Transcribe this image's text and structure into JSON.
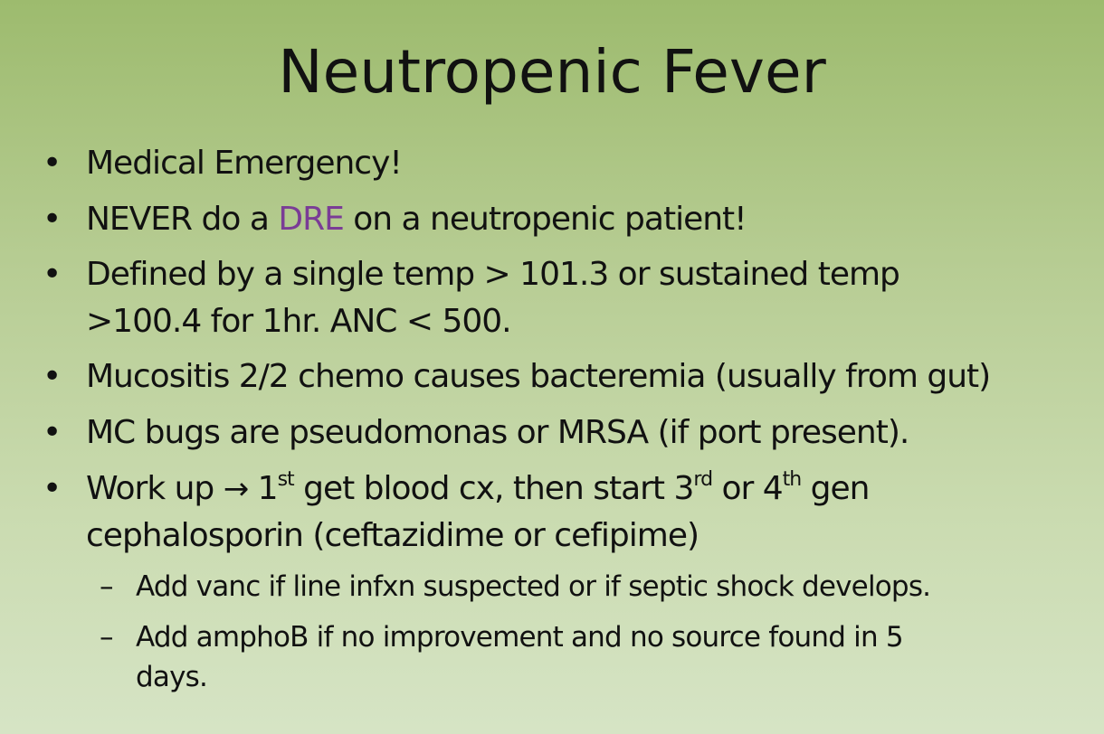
{
  "slide": {
    "title": "Neutropenic Fever",
    "accent_color": "#7a3c96",
    "bullets": [
      {
        "text": "Medical Emergency!"
      },
      {
        "pre": "NEVER do a ",
        "highlight": "DRE",
        "post": " on a neutropenic patient!"
      },
      {
        "line1": "Defined by a single temp > 101.3 or sustained temp",
        "line2": ">100.4 for 1hr. ANC < 500."
      },
      {
        "text": "Mucositis 2/2 chemo causes bacteremia (usually from gut)"
      },
      {
        "text": "MC bugs are pseudomonas or MRSA (if port present)."
      },
      {
        "a": "Work up ",
        "arrow": "→",
        "b": " 1",
        "sup1": "st",
        "c": " get blood cx, then start 3",
        "sup2": "rd",
        "d": " or 4",
        "sup3": "th",
        "e": " gen",
        "line2": "cephalosporin (ceftazidime or cefipime)"
      }
    ],
    "subbullets": [
      {
        "text": "Add vanc if line infxn suspected or if septic shock develops."
      },
      {
        "line1": "Add amphoB if no improvement and no source found in 5",
        "line2": "days."
      }
    ],
    "bullet_glyph": "•",
    "dash_glyph": "–"
  }
}
